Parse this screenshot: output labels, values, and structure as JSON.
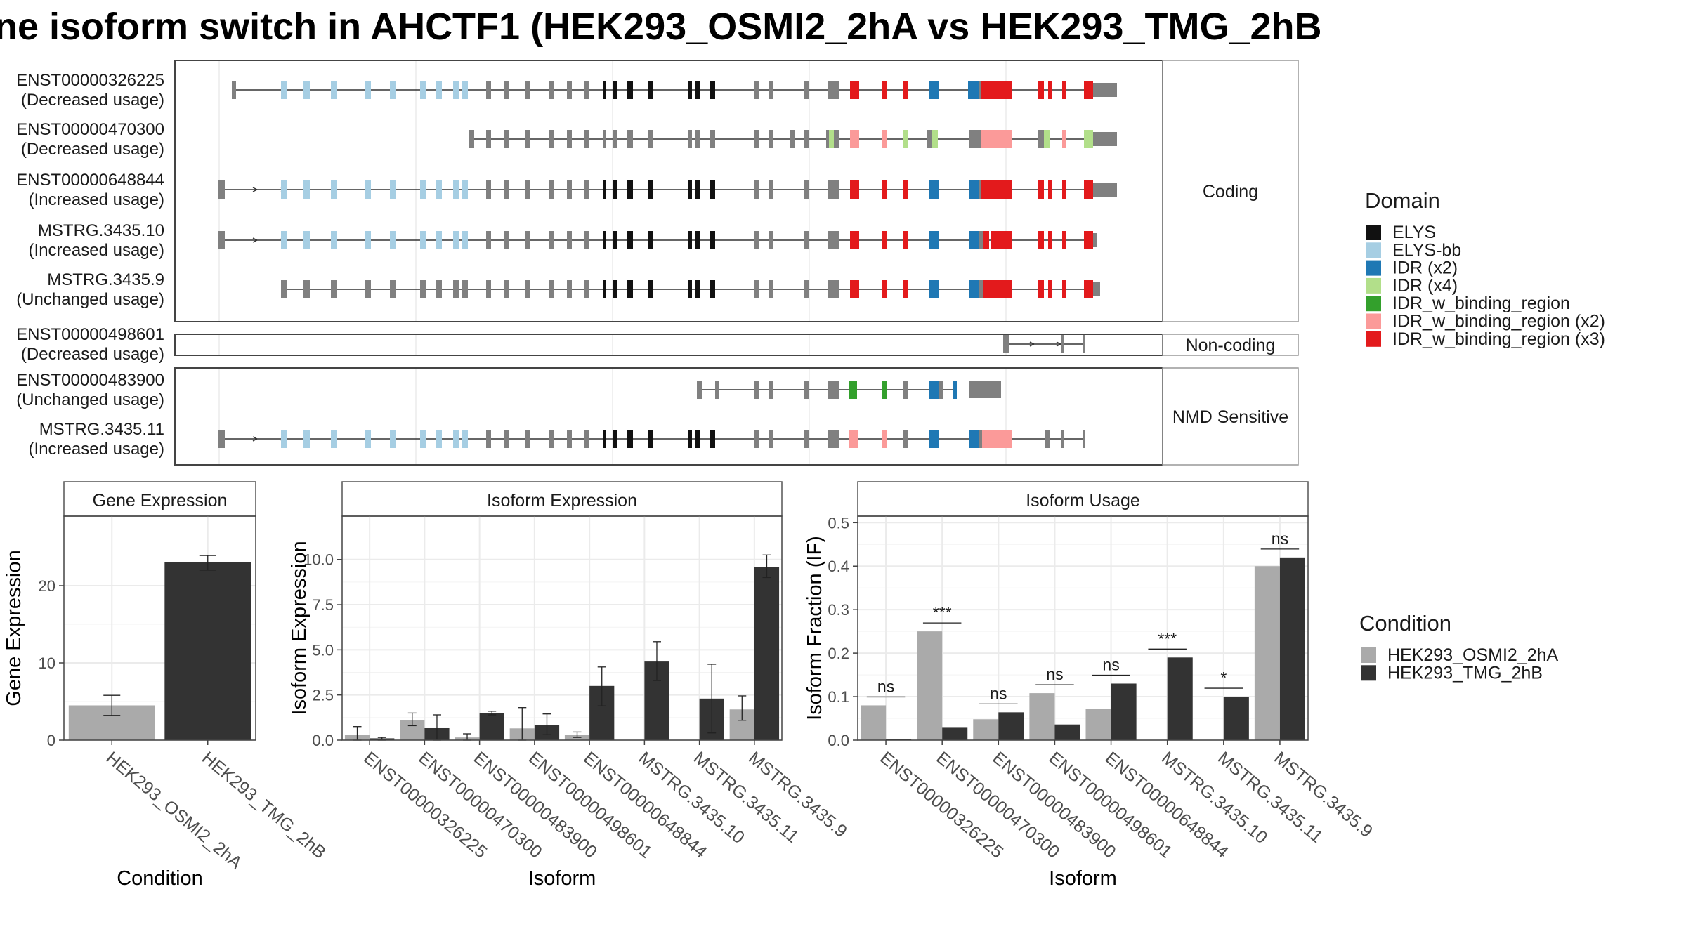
{
  "title": "ne isoform switch in AHCTF1 (HEK293_OSMI2_2hA vs HEK293_TMG_2hB",
  "colors": {
    "condA": "#aaaaaa",
    "condB": "#333333",
    "exon": "#808080",
    "frame": "#444444",
    "strip": "#ffffff",
    "grid": "#ebebeb"
  },
  "structure": {
    "coding_label": "Coding",
    "noncoding_label": "Non-coding",
    "nmd_label": "NMD Sensitive",
    "isoforms": [
      {
        "id": "ENST00000326225",
        "usage": "(Decreased usage)",
        "panel": "coding"
      },
      {
        "id": "ENST00000470300",
        "usage": "(Decreased usage)",
        "panel": "coding"
      },
      {
        "id": "ENST00000648844",
        "usage": "(Increased usage)",
        "panel": "coding"
      },
      {
        "id": "MSTRG.3435.10",
        "usage": "(Increased usage)",
        "panel": "coding"
      },
      {
        "id": "MSTRG.3435.9",
        "usage": "(Unchanged usage)",
        "panel": "coding"
      },
      {
        "id": "ENST00000498601",
        "usage": "(Decreased usage)",
        "panel": "noncoding"
      },
      {
        "id": "ENST00000483900",
        "usage": "(Unchanged usage)",
        "panel": "nmd"
      },
      {
        "id": "MSTRG.3435.11",
        "usage": "(Increased usage)",
        "panel": "nmd"
      }
    ]
  },
  "domain_legend": {
    "title": "Domain",
    "items": [
      {
        "label": "ELYS",
        "color": "#111111"
      },
      {
        "label": "ELYS-bb",
        "color": "#a6cee3"
      },
      {
        "label": "IDR (x2)",
        "color": "#1f78b4"
      },
      {
        "label": "IDR (x4)",
        "color": "#b2df8a"
      },
      {
        "label": "IDR_w_binding_region",
        "color": "#33a02c"
      },
      {
        "label": "IDR_w_binding_region (x2)",
        "color": "#fb9a99"
      },
      {
        "label": "IDR_w_binding_region (x3)",
        "color": "#e31a1c"
      }
    ]
  },
  "condition_legend": {
    "title": "Condition",
    "items": [
      {
        "label": "HEK293_OSMI2_2hA",
        "color": "#aaaaaa"
      },
      {
        "label": "HEK293_TMG_2hB",
        "color": "#333333"
      }
    ]
  },
  "chart_data": [
    {
      "type": "bar",
      "title": "Gene Expression",
      "xlabel": "Condition",
      "ylabel": "Gene Expression",
      "categories": [
        "HEK293_OSMI2_2hA",
        "HEK293_TMG_2hB"
      ],
      "values": [
        4.5,
        23.0
      ],
      "error_low": [
        3.2,
        22.0
      ],
      "error_high": [
        5.8,
        23.9
      ],
      "ylim": [
        0,
        29
      ],
      "yticks": [
        "0",
        "10",
        "20"
      ],
      "ytick_values": [
        0,
        10,
        20
      ]
    },
    {
      "type": "bar",
      "title": "Isoform Expression",
      "xlabel": "Isoform",
      "ylabel": "Isoform Expression",
      "categories": [
        "ENST00000326225",
        "ENST00000470300",
        "ENST00000483900",
        "ENST00000498601",
        "ENST00000648844",
        "MSTRG.3435.10",
        "MSTRG.3435.11",
        "MSTRG.3435.9"
      ],
      "series": [
        {
          "name": "HEK293_OSMI2_2hA",
          "values": [
            0.3,
            1.1,
            0.15,
            0.65,
            0.3,
            0.0,
            0.0,
            1.7
          ],
          "error_low": [
            0.0,
            0.8,
            0.0,
            0.0,
            0.15,
            0.0,
            0.0,
            1.1
          ],
          "error_high": [
            0.75,
            1.5,
            0.35,
            1.8,
            0.45,
            0.0,
            0.0,
            2.45
          ]
        },
        {
          "name": "HEK293_TMG_2hB",
          "values": [
            0.1,
            0.7,
            1.5,
            0.85,
            3.0,
            4.35,
            2.3,
            9.6
          ],
          "error_low": [
            0.0,
            0.0,
            1.4,
            0.3,
            1.9,
            3.3,
            0.4,
            9.0
          ],
          "error_high": [
            0.15,
            1.4,
            1.6,
            1.45,
            4.05,
            5.45,
            4.2,
            10.25
          ]
        }
      ],
      "ylim": [
        0,
        12.4
      ],
      "yticks": [
        "0.0",
        "2.5",
        "5.0",
        "7.5",
        "10.0"
      ],
      "ytick_values": [
        0,
        2.5,
        5,
        7.5,
        10
      ]
    },
    {
      "type": "bar",
      "title": "Isoform Usage",
      "xlabel": "Isoform",
      "ylabel": "Isoform Fraction (IF)",
      "categories": [
        "ENST00000326225",
        "ENST00000470300",
        "ENST00000483900",
        "ENST00000498601",
        "ENST00000648844",
        "MSTRG.3435.10",
        "MSTRG.3435.11",
        "MSTRG.3435.9"
      ],
      "series": [
        {
          "name": "HEK293_OSMI2_2hA",
          "values": [
            0.08,
            0.25,
            0.048,
            0.108,
            0.072,
            0.0,
            0.0,
            0.4
          ]
        },
        {
          "name": "HEK293_TMG_2hB",
          "values": [
            0.003,
            0.03,
            0.064,
            0.036,
            0.13,
            0.19,
            0.1,
            0.42
          ]
        }
      ],
      "significance": [
        "ns",
        "***",
        "ns",
        "ns",
        "ns",
        "***",
        "*",
        "ns"
      ],
      "ylim": [
        0,
        0.515
      ],
      "yticks": [
        "0.0",
        "0.1",
        "0.2",
        "0.3",
        "0.4",
        "0.5"
      ],
      "ytick_values": [
        0,
        0.1,
        0.2,
        0.3,
        0.4,
        0.5
      ]
    }
  ]
}
